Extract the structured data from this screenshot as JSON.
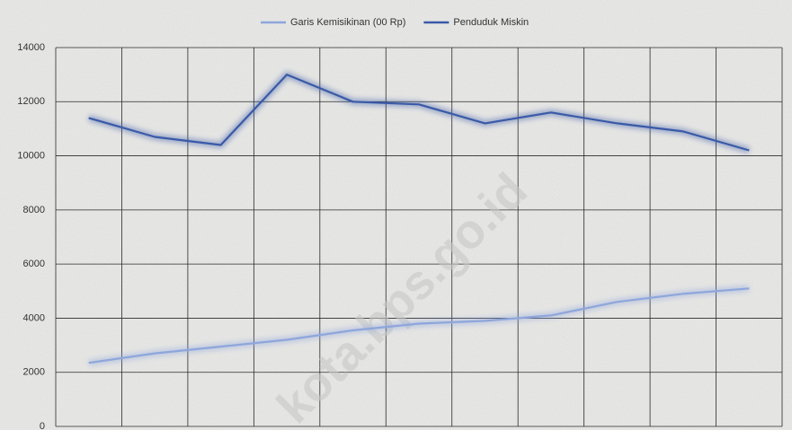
{
  "chart_data": {
    "type": "line",
    "watermark": "kota.bps.go.id",
    "categories": [
      null,
      null,
      null,
      null,
      null,
      null,
      null,
      null,
      null,
      null,
      null
    ],
    "series": [
      {
        "name": "Garis Kemisikinan (00 Rp)",
        "color": "#8ea6dc",
        "values": [
          2350,
          2700,
          2950,
          3200,
          3550,
          3800,
          3900,
          4100,
          4600,
          4900,
          5100
        ]
      },
      {
        "name": "Penduduk Miskin",
        "color": "#3a5aa8",
        "values": [
          11400,
          10700,
          10400,
          13000,
          12000,
          11900,
          11200,
          11600,
          11200,
          10900,
          10200
        ]
      }
    ],
    "ylim": [
      0,
      14000
    ],
    "yticks": [
      0,
      2000,
      4000,
      6000,
      8000,
      10000,
      12000,
      14000
    ],
    "grid": true,
    "legend": "top"
  }
}
